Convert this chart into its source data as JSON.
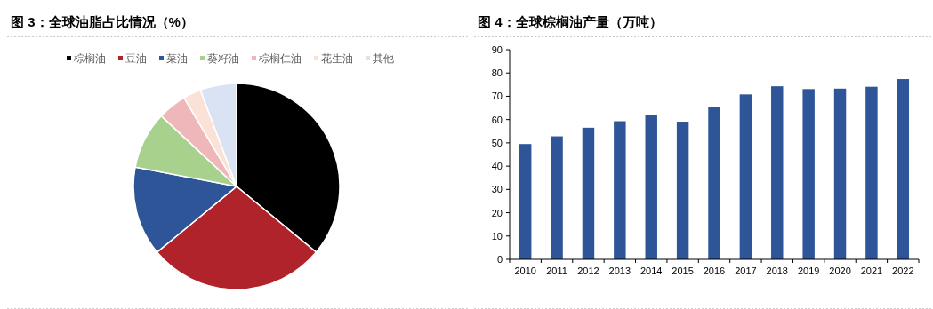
{
  "chart_data": [
    {
      "type": "pie",
      "title": "图 3：全球油脂占比情况（%）",
      "categories": [
        "棕榈油",
        "豆油",
        "菜油",
        "葵籽油",
        "棕榈仁油",
        "花生油",
        "其他"
      ],
      "values": [
        36,
        28,
        14,
        9,
        4.5,
        2.8,
        5.7
      ],
      "colors": [
        "#000000",
        "#b0232a",
        "#2e5597",
        "#a9d18e",
        "#f0b7ba",
        "#fae3d6",
        "#dae3f3"
      ],
      "legend": "top"
    },
    {
      "type": "bar",
      "title": "图 4：全球棕榈油产量（万吨）",
      "categories": [
        "2010",
        "2011",
        "2012",
        "2013",
        "2014",
        "2015",
        "2016",
        "2017",
        "2018",
        "2019",
        "2020",
        "2021",
        "2022"
      ],
      "values": [
        49.5,
        52.8,
        56.5,
        59.3,
        61.9,
        59.1,
        65.5,
        70.8,
        74.3,
        73.1,
        73.3,
        74.1,
        77.4
      ],
      "color": "#2e5597",
      "ylim": [
        0,
        90
      ],
      "yticks": [
        0,
        10,
        20,
        30,
        40,
        50,
        60,
        70,
        80,
        90
      ]
    }
  ]
}
